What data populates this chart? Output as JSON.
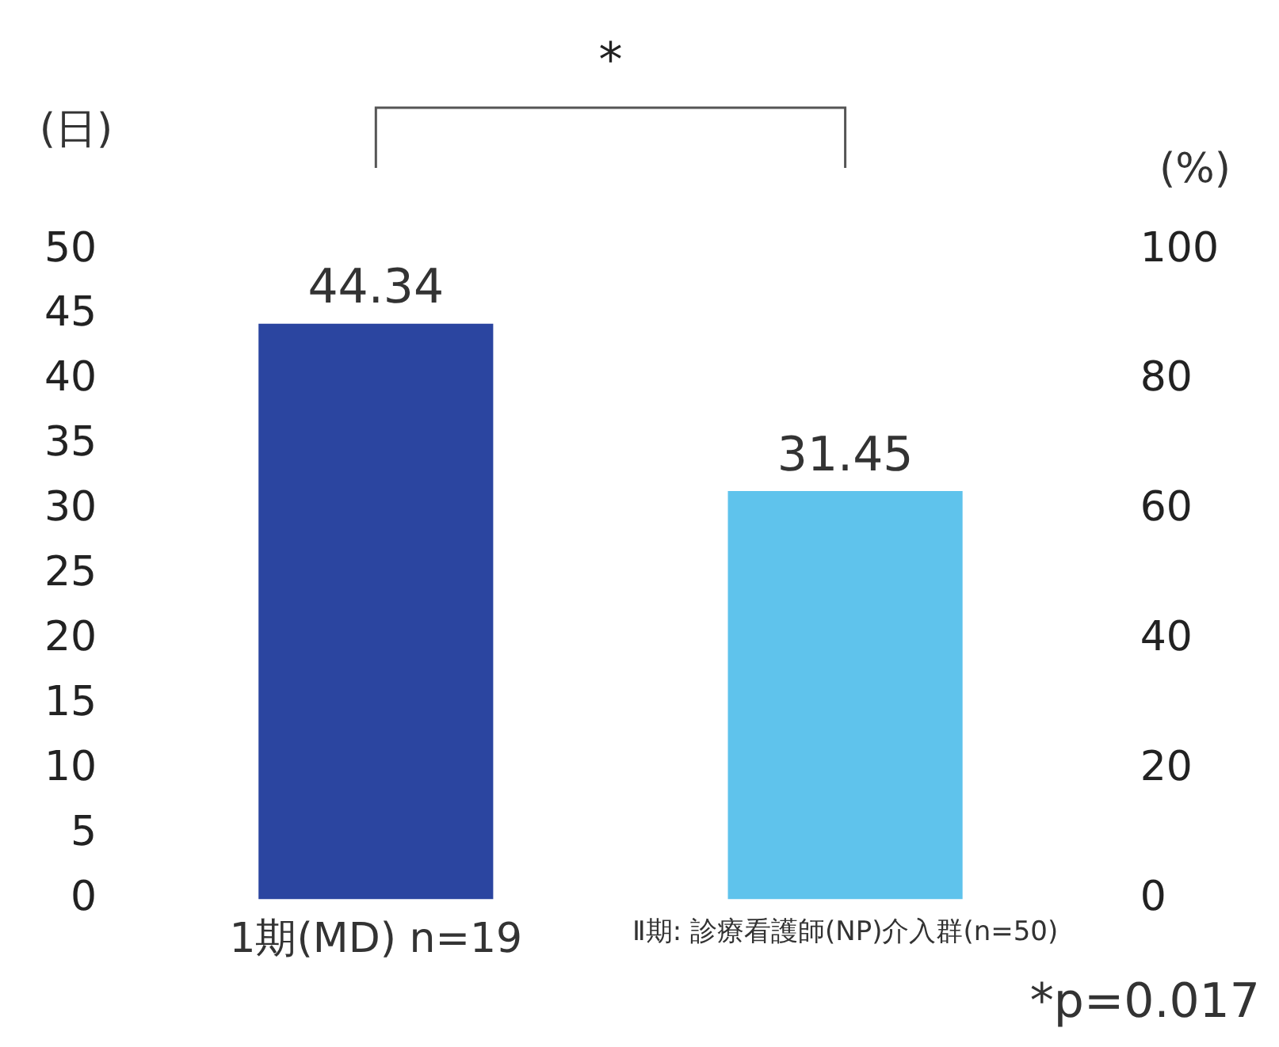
{
  "chart_data": {
    "type": "bar",
    "ylabel": "(日)",
    "y2label": "(%)",
    "categories": [
      "1期(MD) n=19",
      "Ⅱ期: 診療看護師(NP)介入群(n=50)"
    ],
    "values": [
      44.34,
      31.45
    ],
    "colors": [
      "#2b45a0",
      "#5fc3ec"
    ],
    "ylim": [
      0,
      50
    ],
    "yticks": [
      0,
      5,
      10,
      15,
      20,
      25,
      30,
      35,
      40,
      45,
      50
    ],
    "y2lim": [
      0,
      100
    ],
    "y2ticks": [
      0,
      20,
      40,
      60,
      80,
      100
    ],
    "data_labels": true,
    "annotations": [
      "*",
      "*p=0.017"
    ],
    "legend": false
  }
}
